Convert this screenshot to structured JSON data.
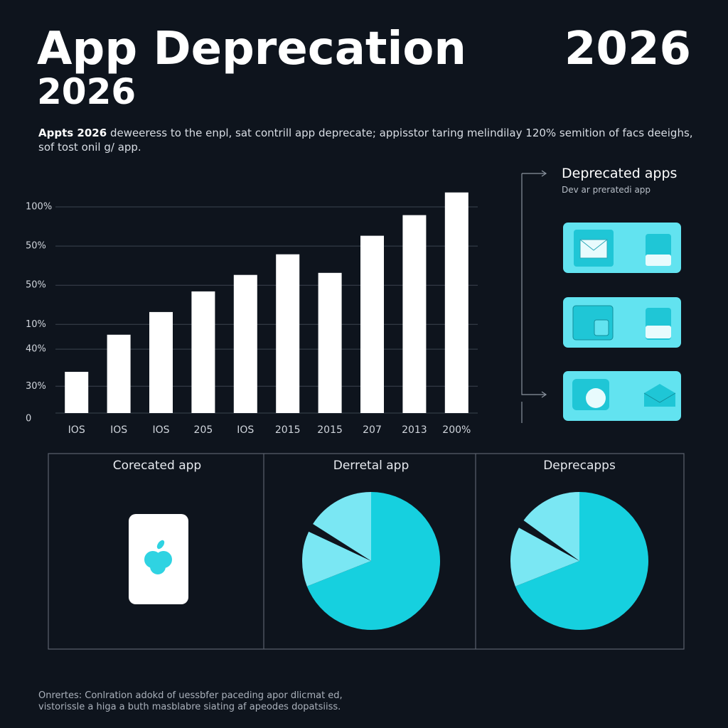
{
  "header": {
    "title": "App Deprecation",
    "title_line2": "2026",
    "year": "2026",
    "description_lead": "Appts 2026",
    "description": "deweeress to the enpl, sat contrill app deprecate; appisstor taring melindilay 120% semition of facs deeighs,",
    "description_line2": "sof tost onil g/ app."
  },
  "side_panel": {
    "title": "Deprecated apps",
    "subtitle": "Dev ar preratedi app"
  },
  "panel": {
    "title": "Corecated app"
  },
  "footer": {
    "lines": [
      "Onrertes: Conlration adokd of uessbfer paceding apor dlicmat ed,",
      "vistorissle a higa a buth masblabre siating af apeodes dopatsiiss."
    ]
  },
  "chart_data": [
    {
      "type": "bar",
      "categories": [
        "IOS",
        "IOS",
        "IOS",
        "205",
        "IOS",
        "2015",
        "2015",
        "207",
        "2013",
        "200%"
      ],
      "values": [
        20,
        38,
        49,
        59,
        67,
        77,
        68,
        86,
        96,
        107
      ],
      "color": "#ffffff",
      "ylim": [
        0,
        110
      ],
      "yticks": [
        {
          "value": 100,
          "label": "100%"
        },
        {
          "value": 81,
          "label": "50%"
        },
        {
          "value": 62,
          "label": "50%"
        },
        {
          "value": 43,
          "label": "10%"
        },
        {
          "value": 31,
          "label": "40%"
        },
        {
          "value": 13,
          "label": "30%"
        },
        0
      ],
      "grid": true
    },
    {
      "type": "pie",
      "title": "Derretal app",
      "values": [
        69,
        13,
        2,
        16
      ],
      "colors": [
        "#16d0df",
        "#7ae7f3",
        "#0e141d",
        "#7ae7f3"
      ]
    },
    {
      "type": "pie",
      "title": "Deprecapps",
      "values": [
        69,
        14,
        2,
        15
      ],
      "colors": [
        "#16d0df",
        "#7ae7f3",
        "#0e141d",
        "#7ae7f3"
      ]
    }
  ]
}
